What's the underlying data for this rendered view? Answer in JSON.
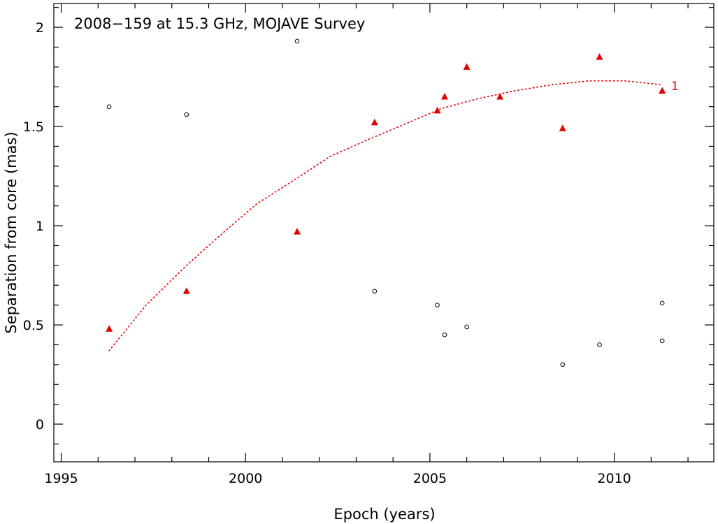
{
  "chart_data": {
    "type": "scatter",
    "title": "2008−159 at 15.3 GHz, MOJAVE Survey",
    "xlabel": "Epoch (years)",
    "ylabel": "Separation from core (mas)",
    "xlim": [
      1994.8,
      2012.7
    ],
    "ylim": [
      -0.19,
      2.12
    ],
    "x_ticks": [
      1995,
      2000,
      2005,
      2010
    ],
    "x_tick_labels": [
      "1995",
      "2000",
      "2005",
      "2010"
    ],
    "y_ticks": [
      0,
      0.5,
      1,
      1.5,
      2
    ],
    "y_tick_labels": [
      "0",
      "0.5",
      "1",
      "1.5",
      "2"
    ],
    "grid": false,
    "colors": {
      "component": "#e00000",
      "other": "#000000",
      "axes": "#000000"
    },
    "series": [
      {
        "name": "1",
        "marker": "filled-triangle",
        "x": [
          1996.3,
          1998.4,
          2001.4,
          2003.5,
          2005.2,
          2005.4,
          2006.0,
          2006.9,
          2008.6,
          2009.6,
          2011.3
        ],
        "y": [
          0.48,
          0.67,
          0.97,
          1.52,
          1.58,
          1.65,
          1.8,
          1.65,
          1.49,
          1.85,
          1.68
        ]
      },
      {
        "marker": "open-circle",
        "x": [
          1996.3,
          1998.4,
          2001.4,
          2003.5,
          2005.2,
          2005.4,
          2006.0,
          2008.6,
          2009.6,
          2011.3,
          2011.3
        ],
        "y": [
          1.6,
          1.56,
          1.93,
          0.67,
          0.6,
          0.45,
          0.49,
          0.3,
          0.4,
          0.61,
          0.42
        ]
      }
    ],
    "fit": {
      "label": "1",
      "style": "dotted",
      "x": [
        1996.3,
        1997.3,
        1998.4,
        1999.3,
        2000.3,
        2001.4,
        2002.3,
        2003.4,
        2004.3,
        2005.3,
        2006.3,
        2007.3,
        2008.3,
        2009.3,
        2010.3,
        2011.3
      ],
      "y": [
        0.37,
        0.6,
        0.8,
        0.95,
        1.11,
        1.24,
        1.35,
        1.44,
        1.51,
        1.59,
        1.64,
        1.68,
        1.71,
        1.73,
        1.73,
        1.71
      ]
    }
  }
}
